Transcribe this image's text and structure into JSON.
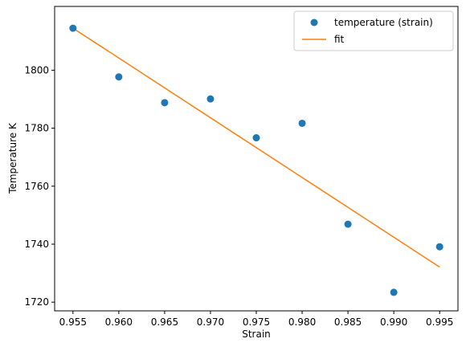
{
  "colors": {
    "scatter": "#1f77b4",
    "fit": "#ff7f0e",
    "axes": "#000000",
    "legend_border": "#cccccc",
    "background": "#ffffff"
  },
  "chart_data": {
    "type": "scatter",
    "xlabel": "Strain",
    "ylabel": "Temperature K",
    "xlim": [
      0.953,
      0.997
    ],
    "ylim": [
      1717,
      1822
    ],
    "xticks": [
      0.955,
      0.96,
      0.965,
      0.97,
      0.975,
      0.98,
      0.985,
      0.99,
      0.995
    ],
    "xtick_labels": [
      "0.955",
      "0.960",
      "0.965",
      "0.970",
      "0.975",
      "0.980",
      "0.985",
      "0.990",
      "0.995"
    ],
    "yticks": [
      1720,
      1740,
      1760,
      1780,
      1800
    ],
    "ytick_labels": [
      "1720",
      "1740",
      "1760",
      "1780",
      "1800"
    ],
    "grid": false,
    "legend_position": "top-right",
    "series": [
      {
        "name": "temperature (strain)",
        "kind": "scatter",
        "color": "#1f77b4",
        "x": [
          0.955,
          0.96,
          0.965,
          0.97,
          0.975,
          0.98,
          0.985,
          0.99,
          0.995
        ],
        "y": [
          1814.5,
          1797.7,
          1788.8,
          1790.1,
          1776.7,
          1781.7,
          1746.9,
          1723.4,
          1739.1
        ]
      },
      {
        "name": "fit",
        "kind": "line",
        "color": "#ff7f0e",
        "x": [
          0.955,
          0.995
        ],
        "y": [
          1814.5,
          1732.1
        ]
      }
    ]
  }
}
